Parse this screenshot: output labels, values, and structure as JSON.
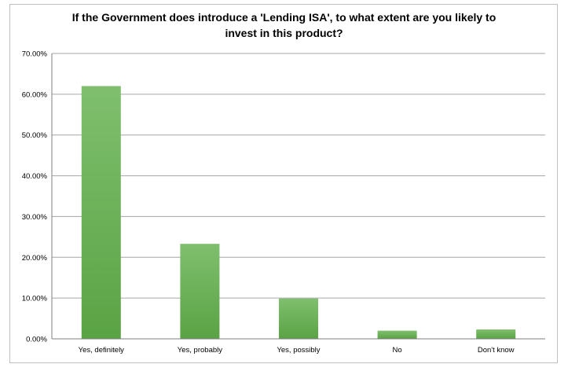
{
  "chart_data": {
    "type": "bar",
    "title": "If the Government does introduce a 'Lending ISA', to what extent are you likely to invest in this product?",
    "xlabel": "",
    "ylabel": "",
    "categories": [
      "Yes, definitely",
      "Yes, probably",
      "Yes, possibly",
      "No",
      "Don't know"
    ],
    "values": [
      62.0,
      23.3,
      9.9,
      2.0,
      2.3
    ],
    "ylim": [
      0,
      70
    ],
    "yticks": [
      0,
      10,
      20,
      30,
      40,
      50,
      60,
      70
    ],
    "ytick_labels": [
      "0.00%",
      "10.00%",
      "20.00%",
      "30.00%",
      "40.00%",
      "50.00%",
      "60.00%",
      "70.00%"
    ],
    "grid": true,
    "legend": "none",
    "colors": {
      "bar_light": "#7fbf6e",
      "bar_dark": "#5aa344",
      "grid": "#a6a6a6"
    }
  }
}
